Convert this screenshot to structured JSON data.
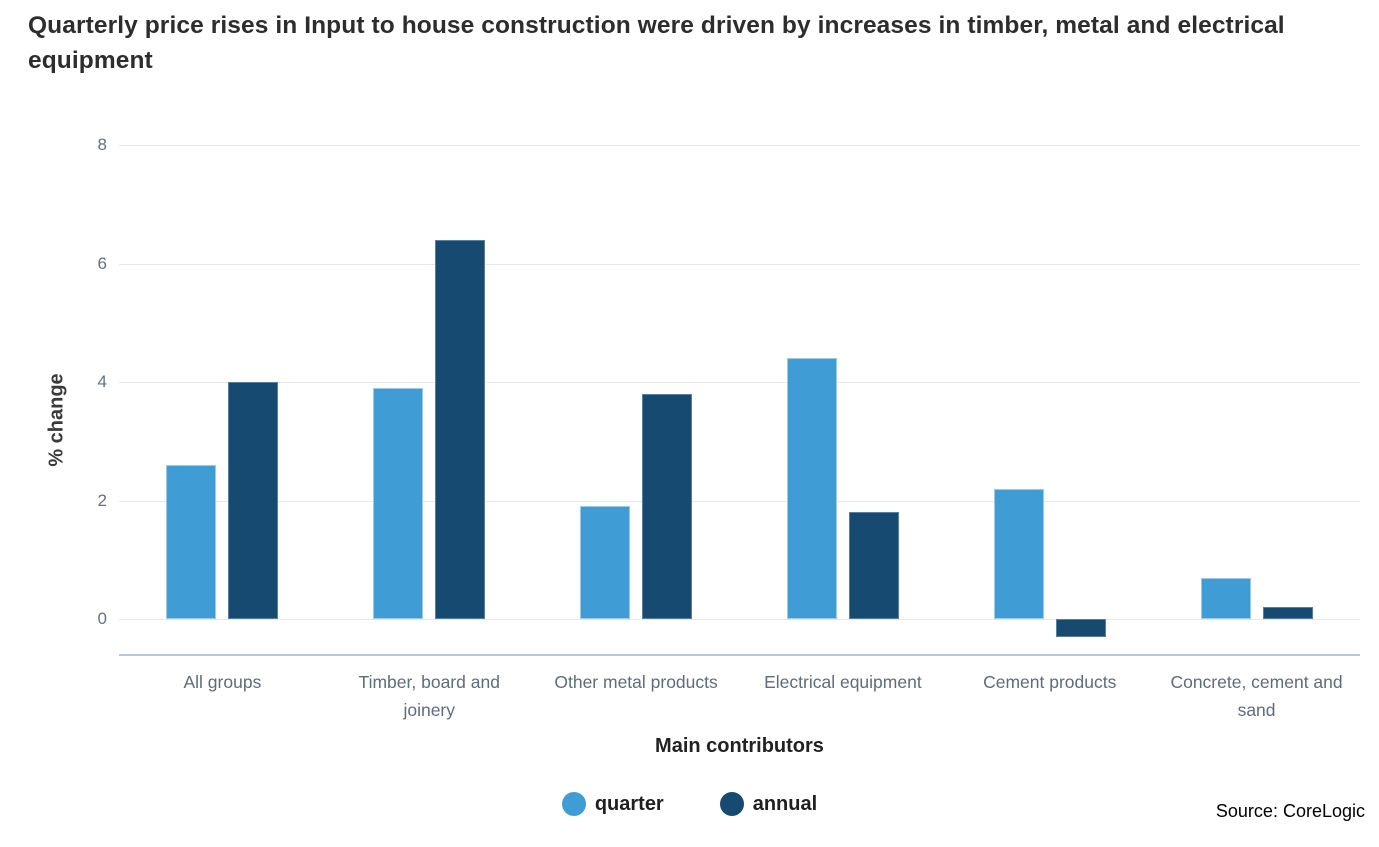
{
  "chart_data": {
    "type": "bar",
    "title": "Quarterly price rises in Input to house construction were driven by increases in timber, metal and electrical equipment",
    "categories": [
      "All groups",
      "Timber, board and joinery",
      "Other metal products",
      "Electrical equipment",
      "Cement products",
      "Concrete, cement and sand"
    ],
    "series": [
      {
        "name": "quarter",
        "color": "#3f9cd4",
        "edge_color": "#9ccbe8",
        "values": [
          2.6,
          3.9,
          1.9,
          4.4,
          2.2,
          0.7
        ]
      },
      {
        "name": "annual",
        "color": "#164a70",
        "edge_color": "#567fa0",
        "values": [
          4.0,
          6.4,
          3.8,
          1.8,
          -0.3,
          0.2
        ]
      }
    ],
    "xlabel": "Main contributors",
    "ylabel": "% change",
    "yticks": [
      0,
      2,
      4,
      6,
      8
    ],
    "ylim": [
      -0.6,
      8
    ],
    "grid": true,
    "legend_position": "bottom"
  },
  "colors": {
    "gridline": "#e8e8e8",
    "axis_line": "#b9c7da",
    "tick_text": "#66717f",
    "category_text": "#5f6c7c",
    "title_text": "#2d2d2d"
  },
  "footer": {
    "source": "Source: CoreLogic"
  }
}
